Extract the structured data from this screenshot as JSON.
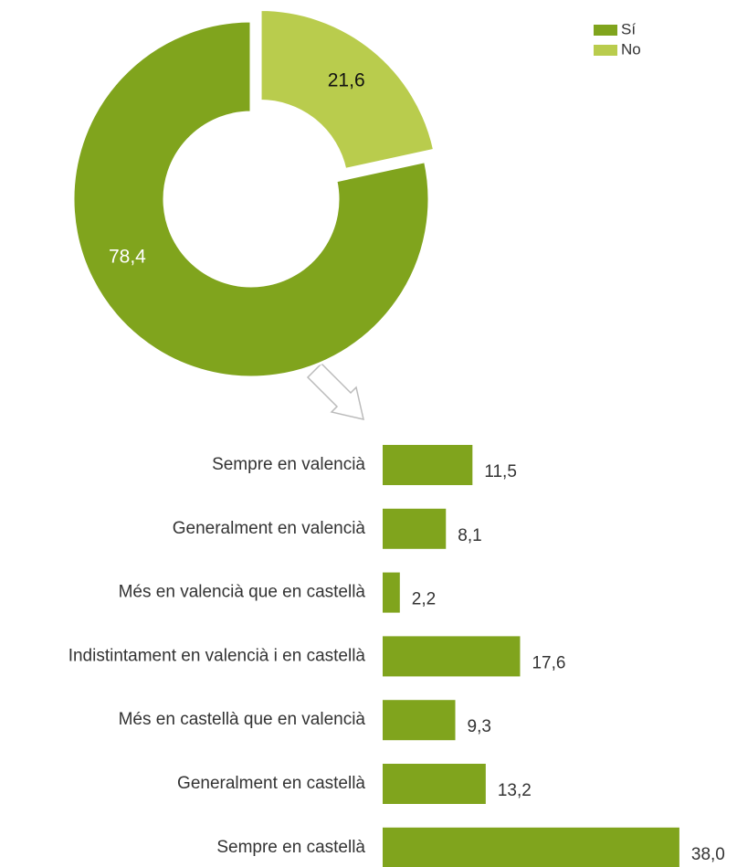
{
  "chart_data": [
    {
      "type": "donut",
      "categories": [
        "Sí",
        "No"
      ],
      "values": [
        78.4,
        21.6
      ],
      "value_labels": [
        "78,4",
        "21,6"
      ],
      "colors": [
        "#80a41d",
        "#b9cc4d"
      ],
      "legend": "top-right"
    },
    {
      "type": "hbar",
      "categories": [
        "Sempre en valencià",
        "Generalment en valencià",
        "Més en valencià que en castellà",
        "Indistintament en valencià i en castellà",
        "Més en castellà que en valencià",
        "Generalment en castellà",
        "Sempre en castellà"
      ],
      "values": [
        11.5,
        8.1,
        2.2,
        17.6,
        9.3,
        13.2,
        38.0
      ],
      "value_labels": [
        "11,5",
        "8,1",
        "2,2",
        "17,6",
        "9,3",
        "13,2",
        "38,0"
      ],
      "color": "#80a41d"
    }
  ]
}
